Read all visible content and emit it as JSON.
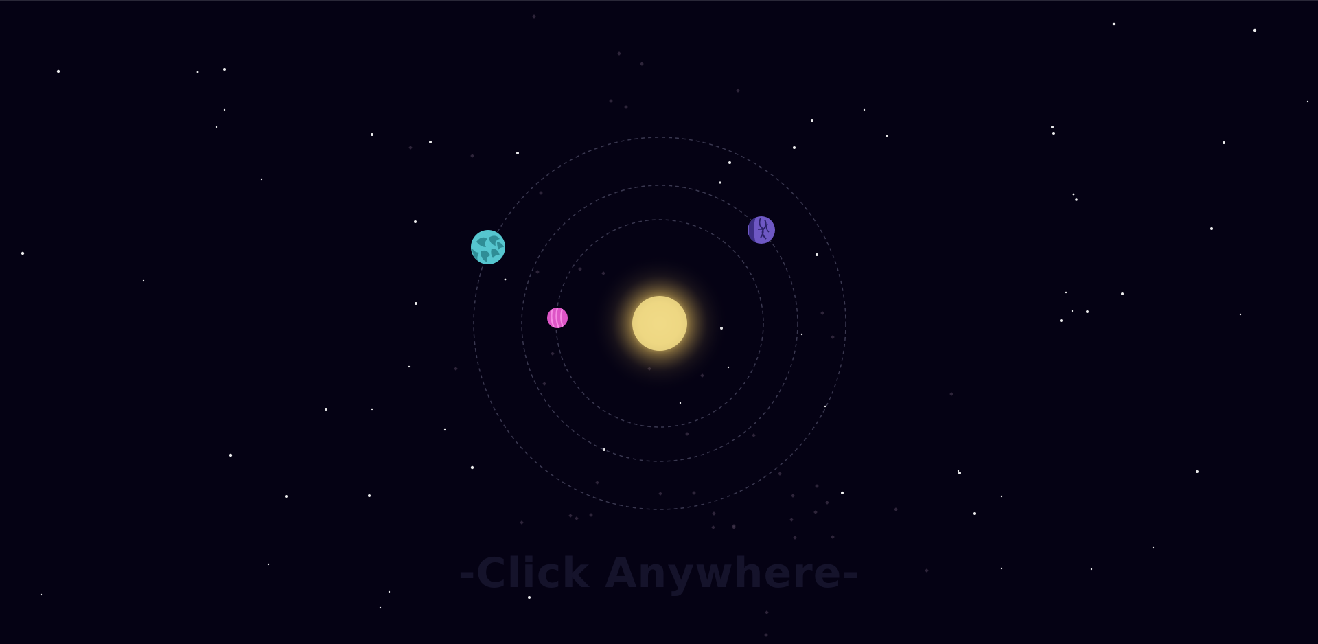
{
  "prompt": {
    "label": "-Click Anywhere-"
  },
  "colors": {
    "background": "#050214",
    "sun_core": "#f3dd8a",
    "sun_glow": "#d8b24e",
    "orbit": "#3a3850",
    "planet_teal": "#56c6cf",
    "planet_teal_pattern": "#2f8d96",
    "planet_pink": "#dd55c6",
    "planet_pink_pattern": "#f58be3",
    "planet_purple": "#6e58c4",
    "planet_purple_pattern": "#3d2f86",
    "hint_text": "#15132b"
  },
  "planets": [
    {
      "name": "teal-planet",
      "icon": "teal-planet-icon"
    },
    {
      "name": "pink-planet",
      "icon": "pink-planet-icon"
    },
    {
      "name": "purple-planet",
      "icon": "purple-planet-icon"
    }
  ]
}
